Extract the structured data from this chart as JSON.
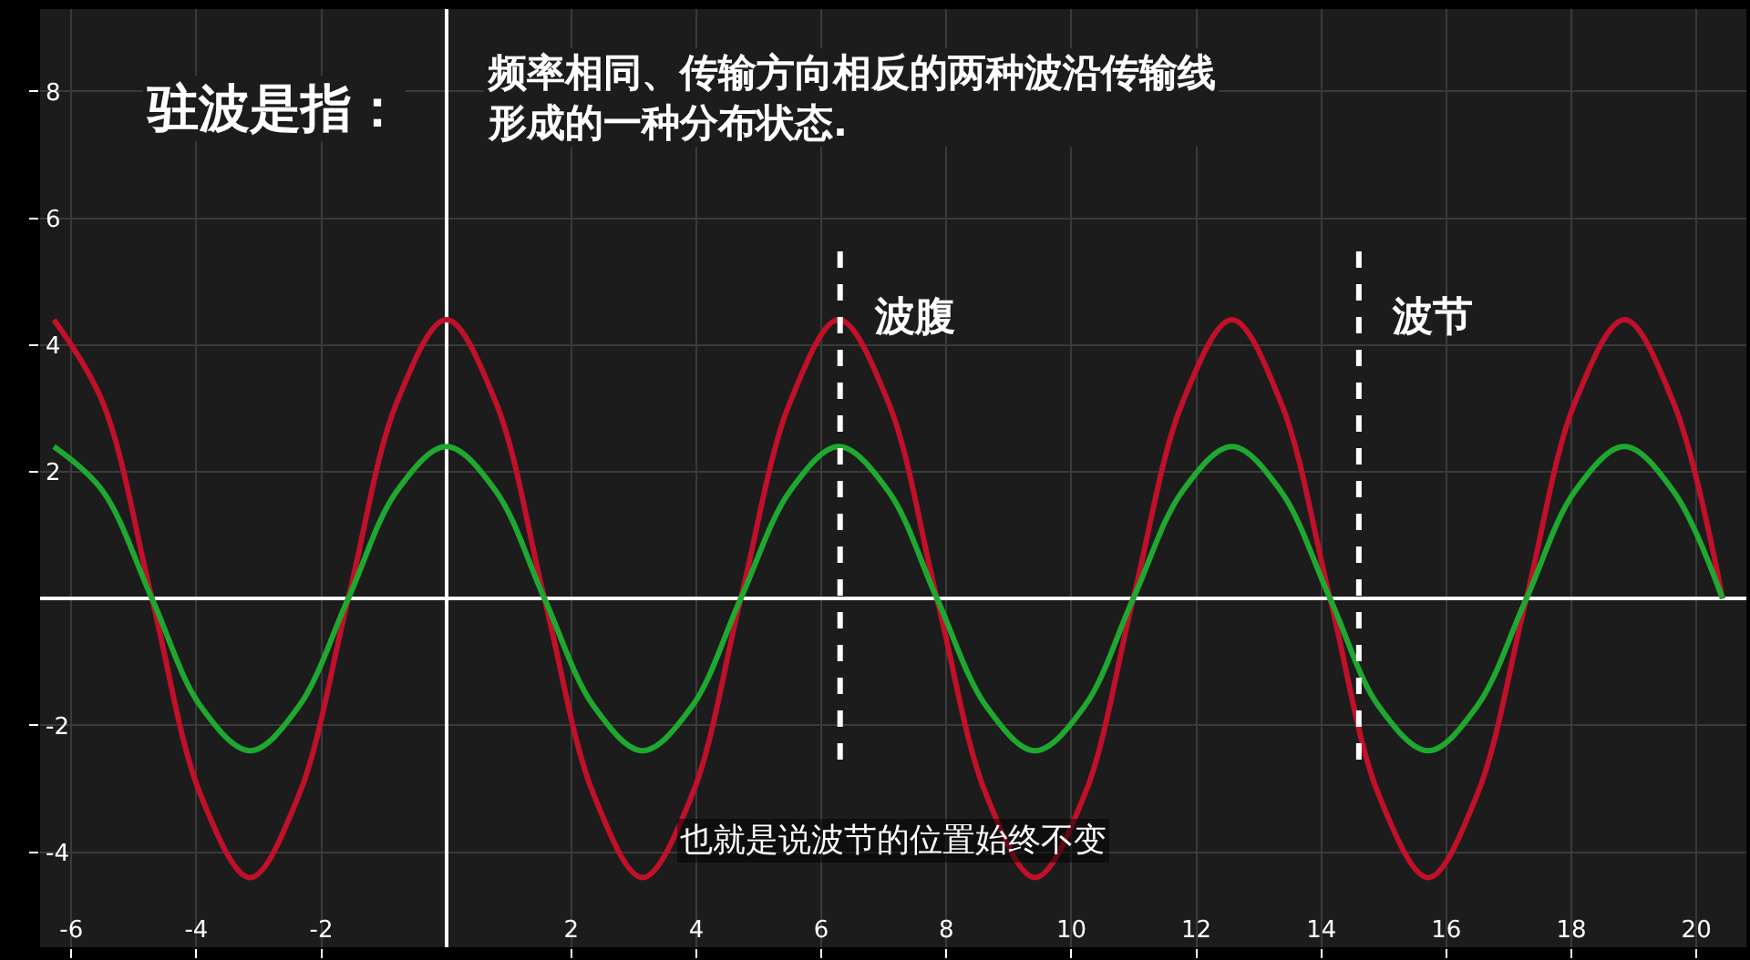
{
  "chart_data": {
    "type": "line",
    "title": "驻波是指：",
    "subtitle": "频率相同、传输方向相反的两种波沿传输线形成的一种分布状态.",
    "x": [
      -6.28,
      -5.5,
      -4.71,
      -3.93,
      -3.14,
      -2.36,
      -1.57,
      -0.79,
      0,
      0.79,
      1.57,
      2.36,
      3.14,
      3.93,
      4.71,
      5.5,
      6.28,
      7.07,
      7.85,
      8.64,
      9.42,
      10.21,
      10.99,
      11.78,
      12.57,
      13.35,
      14.14,
      14.92,
      15.71,
      16.49,
      17.28,
      18.06,
      18.85,
      19.63,
      20.42
    ],
    "series": [
      {
        "color": "#c0102a",
        "values": [
          4.4,
          3.1,
          0,
          -3.1,
          -4.4,
          -3.1,
          0,
          3.1,
          4.4,
          3.1,
          0,
          -3.1,
          -4.4,
          -3.1,
          0,
          3.1,
          4.4,
          3.1,
          0,
          -3.1,
          -4.4,
          -3.1,
          0,
          3.1,
          4.4,
          3.1,
          0,
          -3.1,
          -4.4,
          -3.1,
          0,
          3.1,
          4.4,
          3.1,
          0
        ]
      },
      {
        "color": "#1fa830",
        "values": [
          2.4,
          1.7,
          0,
          -1.7,
          -2.4,
          -1.7,
          0,
          1.7,
          2.4,
          1.7,
          0,
          -1.7,
          -2.4,
          -1.7,
          0,
          1.7,
          2.4,
          1.7,
          0,
          -1.7,
          -2.4,
          -1.7,
          0,
          1.7,
          2.4,
          1.7,
          0,
          -1.7,
          -2.4,
          -1.7,
          0,
          1.7,
          2.4,
          1.7,
          0
        ]
      }
    ],
    "xlim": [
      -6.5,
      20.8
    ],
    "ylim": [
      -5.5,
      9.3
    ],
    "xticks": [
      -6,
      -4,
      -2,
      2,
      4,
      6,
      8,
      10,
      12,
      14,
      16,
      18,
      20
    ],
    "yticks": [
      -4,
      -2,
      2,
      4,
      6,
      8
    ],
    "grid": true,
    "marker": "none",
    "line_style": "solid",
    "ref_lines": [
      {
        "axis": "x",
        "value": 6.3,
        "label": "波腹",
        "color": "#ffffff",
        "line_style": "dashed"
      },
      {
        "axis": "x",
        "value": 14.6,
        "label": "波节",
        "color": "#ffffff",
        "line_style": "dashed"
      }
    ],
    "annotations": [
      "也就是说波节的位置始终不变"
    ]
  }
}
